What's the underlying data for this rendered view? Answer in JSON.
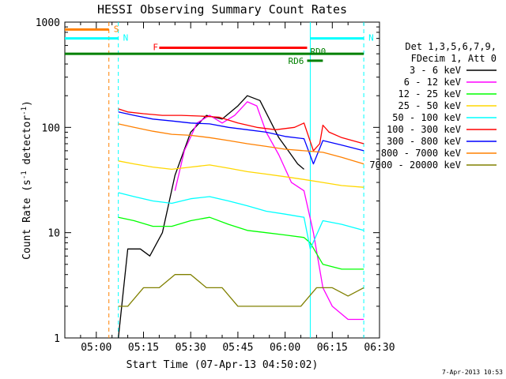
{
  "chart_data": {
    "type": "line",
    "title": "HESSI Observing Summary Count Rates",
    "xlabel": "Start Time (07-Apr-13 04:50:02)",
    "ylabel_main": "Count Rate (s",
    "ylabel_sup1": "-1",
    "ylabel_mid": " detector",
    "ylabel_sup2": "-1",
    "ylabel_end": ")",
    "yscale": "log",
    "ylim": [
      1,
      1000
    ],
    "xlim": [
      "04:50",
      "06:30"
    ],
    "x_ticks": [
      "05:00",
      "05:15",
      "05:30",
      "05:45",
      "06:00",
      "06:15",
      "06:30"
    ],
    "y_ticks": [
      "1",
      "10",
      "100",
      "1000"
    ],
    "timestamp": "7-Apr-2013 10:53",
    "legend_header": [
      "Det 1,3,5,6,7,9,",
      "FDecim 1, Att 0"
    ],
    "legend_placement": "right",
    "series": [
      {
        "name": "3 - 6 keV",
        "color": "#000000",
        "x": [
          "05:07",
          "05:10",
          "05:14",
          "05:17",
          "05:21",
          "05:25",
          "05:30",
          "05:35",
          "05:40",
          "05:45",
          "05:48",
          "05:52",
          "05:55",
          "05:58",
          "06:01",
          "06:04",
          "06:06"
        ],
        "y": [
          1,
          7,
          7,
          6,
          10,
          35,
          90,
          130,
          120,
          160,
          200,
          180,
          120,
          80,
          60,
          45,
          40
        ]
      },
      {
        "name": "6 - 12 keV",
        "color": "#ff00ff",
        "x": [
          "05:25",
          "05:28",
          "05:32",
          "05:36",
          "05:40",
          "05:44",
          "05:48",
          "05:51",
          "05:54",
          "05:58",
          "06:02",
          "06:06",
          "06:09",
          "06:12",
          "06:15",
          "06:20",
          "06:25"
        ],
        "y": [
          25,
          60,
          110,
          130,
          110,
          130,
          175,
          160,
          90,
          55,
          30,
          25,
          10,
          3,
          2,
          1.5,
          1.5
        ]
      },
      {
        "name": "12 - 25 keV",
        "color": "#00ff00",
        "x": [
          "05:07",
          "05:12",
          "05:18",
          "05:24",
          "05:30",
          "05:36",
          "05:42",
          "05:48",
          "05:54",
          "06:00",
          "06:06",
          "06:08",
          "06:12",
          "06:18",
          "06:25"
        ],
        "y": [
          14,
          13,
          11.5,
          11.5,
          13,
          14,
          12,
          10.5,
          10,
          9.5,
          9,
          8,
          5,
          4.5,
          4.5
        ]
      },
      {
        "name": "25 - 50 keV",
        "color": "#ffd700",
        "x": [
          "05:07",
          "05:12",
          "05:18",
          "05:24",
          "05:30",
          "05:36",
          "05:42",
          "05:48",
          "05:54",
          "06:00",
          "06:06",
          "06:12",
          "06:18",
          "06:25"
        ],
        "y": [
          48,
          45,
          42,
          40,
          42,
          44,
          41,
          38,
          36,
          34,
          32,
          30,
          28,
          27
        ]
      },
      {
        "name": "50 - 100 keV",
        "color": "#00ffff",
        "x": [
          "05:07",
          "05:12",
          "05:18",
          "05:24",
          "05:30",
          "05:36",
          "05:42",
          "05:48",
          "05:54",
          "06:00",
          "06:06",
          "06:08",
          "06:12",
          "06:18",
          "06:25"
        ],
        "y": [
          24,
          22,
          20,
          19,
          21,
          22,
          20,
          18,
          16,
          15,
          14,
          7,
          13,
          12,
          10.5
        ]
      },
      {
        "name": "100 - 300 keV",
        "color": "#ff0000",
        "x": [
          "05:07",
          "05:10",
          "05:15",
          "05:21",
          "05:27",
          "05:33",
          "05:39",
          "05:45",
          "05:51",
          "05:57",
          "06:03",
          "06:06",
          "06:09",
          "06:11",
          "06:12",
          "06:14",
          "06:18",
          "06:25"
        ],
        "y": [
          150,
          140,
          135,
          130,
          130,
          128,
          125,
          110,
          100,
          95,
          100,
          110,
          60,
          70,
          105,
          90,
          80,
          70
        ]
      },
      {
        "name": "300 - 800 keV",
        "color": "#0000ff",
        "x": [
          "05:07",
          "05:12",
          "05:18",
          "05:24",
          "05:30",
          "05:36",
          "05:42",
          "05:48",
          "05:54",
          "06:00",
          "06:06",
          "06:09",
          "06:12",
          "06:18",
          "06:25"
        ],
        "y": [
          140,
          130,
          120,
          115,
          110,
          108,
          100,
          95,
          90,
          82,
          78,
          45,
          75,
          68,
          60
        ]
      },
      {
        "name": "800 - 7000 keV",
        "color": "#ff8000",
        "x": [
          "05:07",
          "05:12",
          "05:18",
          "05:24",
          "05:30",
          "05:36",
          "05:42",
          "05:48",
          "05:54",
          "06:00",
          "06:06",
          "06:12",
          "06:18",
          "06:25"
        ],
        "y": [
          108,
          100,
          92,
          86,
          84,
          80,
          75,
          70,
          66,
          62,
          60,
          58,
          52,
          45
        ]
      },
      {
        "name": "7000 - 20000 keV",
        "color": "#808000",
        "x": [
          "05:07",
          "05:10",
          "05:15",
          "05:20",
          "05:25",
          "05:30",
          "05:35",
          "05:40",
          "05:45",
          "05:50",
          "05:55",
          "06:00",
          "06:05",
          "06:10",
          "06:15",
          "06:20",
          "06:25"
        ],
        "y": [
          2,
          2,
          3,
          3,
          4,
          4,
          3,
          3,
          2,
          2,
          2,
          2,
          2,
          3,
          3,
          2.5,
          3
        ]
      }
    ],
    "annotations": [
      {
        "label": "S",
        "color": "#ff8000",
        "type": "bar",
        "x_start": "04:50",
        "x_end": "05:04",
        "y": 850
      },
      {
        "label": "N",
        "color": "#00ffff",
        "type": "bar",
        "x_start": "04:50",
        "x_end": "05:07",
        "y": 700
      },
      {
        "label": "N",
        "color": "#00ffff",
        "type": "bar",
        "x_start": "06:08",
        "x_end": "06:25",
        "y": 700
      },
      {
        "label": "",
        "color": "#008000",
        "type": "bar",
        "x_start": "04:50",
        "x_end": "06:25",
        "y": 500
      },
      {
        "label": "F",
        "color": "#ff0000",
        "type": "bar",
        "x_start": "05:20",
        "x_end": "06:07",
        "y": 570
      },
      {
        "label": "RD6",
        "color": "#008000",
        "type": "bar",
        "x_start": "06:07",
        "x_end": "06:12",
        "y": 430
      },
      {
        "label": "RD0",
        "color": "#008000",
        "type": "text",
        "x": "06:08",
        "y": 520
      }
    ],
    "vlines": [
      {
        "x": "05:04",
        "color": "#ff8000",
        "style": "dashed"
      },
      {
        "x": "05:07",
        "color": "#00ffff",
        "style": "dashed"
      },
      {
        "x": "06:08",
        "color": "#00ffff",
        "style": "solid"
      },
      {
        "x": "06:25",
        "color": "#00ffff",
        "style": "dashed"
      }
    ]
  }
}
